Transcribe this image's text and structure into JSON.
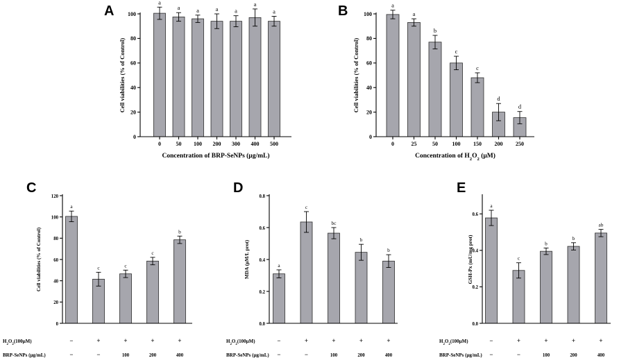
{
  "chart_data": [
    {
      "panel": "A",
      "type": "bar",
      "ylabel": "Cell viabilities (% of Control)",
      "xlabel": "Concentration of BRP-SeNPs (μg/mL)",
      "categories": [
        "0",
        "50",
        "100",
        "200",
        "300",
        "400",
        "500"
      ],
      "values": [
        100.5,
        97.5,
        96,
        94,
        94,
        97,
        94
      ],
      "errors": [
        5,
        3.5,
        3,
        6,
        4.5,
        7,
        4
      ],
      "letters": [
        "a",
        "a",
        "a",
        "a",
        "a",
        "a",
        "a"
      ],
      "ylim": [
        0,
        100
      ],
      "yticks": [
        "0",
        "20",
        "40",
        "60",
        "80",
        "100"
      ],
      "ytick_values": [
        0,
        20,
        40,
        60,
        80,
        100
      ]
    },
    {
      "panel": "B",
      "type": "bar",
      "ylabel": "Cell viabilities (% of Control)",
      "xlabel_parts": [
        "Concentration of H",
        "2",
        "O",
        "2",
        " (μM)"
      ],
      "categories": [
        "0",
        "25",
        "50",
        "100",
        "150",
        "200",
        "250"
      ],
      "values": [
        99.5,
        93,
        77,
        60,
        48,
        20,
        15.5
      ],
      "errors": [
        3.5,
        3,
        5.5,
        5.5,
        4,
        7,
        5
      ],
      "letters": [
        "a",
        "a",
        "b",
        "c",
        "c",
        "d",
        "d"
      ],
      "ylim": [
        0,
        100
      ],
      "yticks": [
        "0",
        "20",
        "40",
        "60",
        "80",
        "100"
      ],
      "ytick_values": [
        0,
        20,
        40,
        60,
        80,
        100
      ]
    },
    {
      "panel": "C",
      "type": "bar",
      "ylabel": "Cell viabilities (% of Control)",
      "values": [
        100.5,
        41.5,
        46.5,
        58.5,
        78.5
      ],
      "errors": [
        5,
        6.5,
        3.5,
        3.5,
        3.5
      ],
      "letters": [
        "a",
        "c",
        "c",
        "c",
        "b"
      ],
      "ylim": [
        0,
        120
      ],
      "yticks": [
        "0",
        "20",
        "40",
        "60",
        "80",
        "100",
        "120"
      ],
      "ytick_values": [
        0,
        20,
        40,
        60,
        80,
        100,
        120
      ],
      "h2o2_signs": [
        "−",
        "+",
        "+",
        "+",
        "+"
      ],
      "brp_values": [
        "−",
        "−",
        "100",
        "200",
        "400"
      ]
    },
    {
      "panel": "D",
      "type": "bar",
      "ylabel": "MDA (μM/L prot)",
      "values": [
        0.31,
        0.635,
        0.565,
        0.445,
        0.39
      ],
      "errors": [
        0.025,
        0.065,
        0.035,
        0.05,
        0.04
      ],
      "letters": [
        "a",
        "c",
        "bc",
        "b",
        "b"
      ],
      "ylim": [
        0,
        0.8
      ],
      "yticks": [
        "0.0",
        "0.2",
        "0.4",
        "0.6",
        "0.8"
      ],
      "ytick_values": [
        0,
        0.2,
        0.4,
        0.6,
        0.8
      ],
      "h2o2_signs": [
        "−",
        "+",
        "+",
        "+",
        "+"
      ],
      "brp_values": [
        "−",
        "−",
        "100",
        "200",
        "400"
      ]
    },
    {
      "panel": "E",
      "type": "bar",
      "ylabel": "GSH-Px (mU/mg prot)",
      "values": [
        0.578,
        0.29,
        0.395,
        0.422,
        0.495
      ],
      "errors": [
        0.042,
        0.042,
        0.018,
        0.02,
        0.02
      ],
      "letters": [
        "a",
        "c",
        "b",
        "b",
        "ab"
      ],
      "ylim": [
        0,
        0.7
      ],
      "yticks": [
        "0.0",
        "0.2",
        "0.4",
        "0.6"
      ],
      "ytick_values": [
        0,
        0.2,
        0.4,
        0.6
      ],
      "h2o2_signs": [
        "−",
        "+",
        "+",
        "+",
        "+"
      ],
      "brp_values": [
        "−",
        "−",
        "100",
        "200",
        "400"
      ]
    }
  ],
  "row_labels": {
    "h2o2_parts": [
      "H",
      "2",
      "O",
      "2",
      "(100μM)"
    ],
    "brp": "BRP-SeNPs (μg/mL)"
  }
}
